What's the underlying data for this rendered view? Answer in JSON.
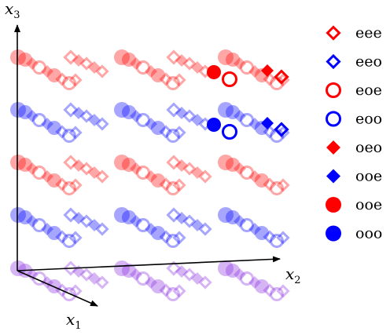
{
  "axes": {
    "x1": {
      "base": "x",
      "sub": "1"
    },
    "x2": {
      "base": "x",
      "sub": "2"
    },
    "x3": {
      "base": "x",
      "sub": "3"
    }
  },
  "colors": {
    "red": "#ff0000",
    "blue": "#0000ff",
    "purple": "#8a2be2"
  },
  "legend": [
    {
      "label": "eee",
      "shape": "diamond",
      "fill": "open",
      "color": "red"
    },
    {
      "label": "eeo",
      "shape": "diamond",
      "fill": "open",
      "color": "blue"
    },
    {
      "label": "eoe",
      "shape": "circle",
      "fill": "open",
      "color": "red"
    },
    {
      "label": "eoo",
      "shape": "circle",
      "fill": "open",
      "color": "blue"
    },
    {
      "label": "oeo",
      "shape": "diamond",
      "fill": "solid",
      "color": "red"
    },
    {
      "label": "ooe",
      "shape": "diamond",
      "fill": "solid",
      "color": "blue"
    },
    {
      "label": "ooe",
      "shape": "circle",
      "fill": "solid",
      "color": "red"
    },
    {
      "label": "ooo",
      "shape": "circle",
      "fill": "solid",
      "color": "blue"
    }
  ],
  "lattice": {
    "rows": [
      "red",
      "blue",
      "red",
      "blue",
      "purple"
    ],
    "highlighted": [
      {
        "row": 0,
        "cell": 3,
        "color": "red"
      },
      {
        "row": 1,
        "cell": 3,
        "color": "blue"
      }
    ]
  }
}
